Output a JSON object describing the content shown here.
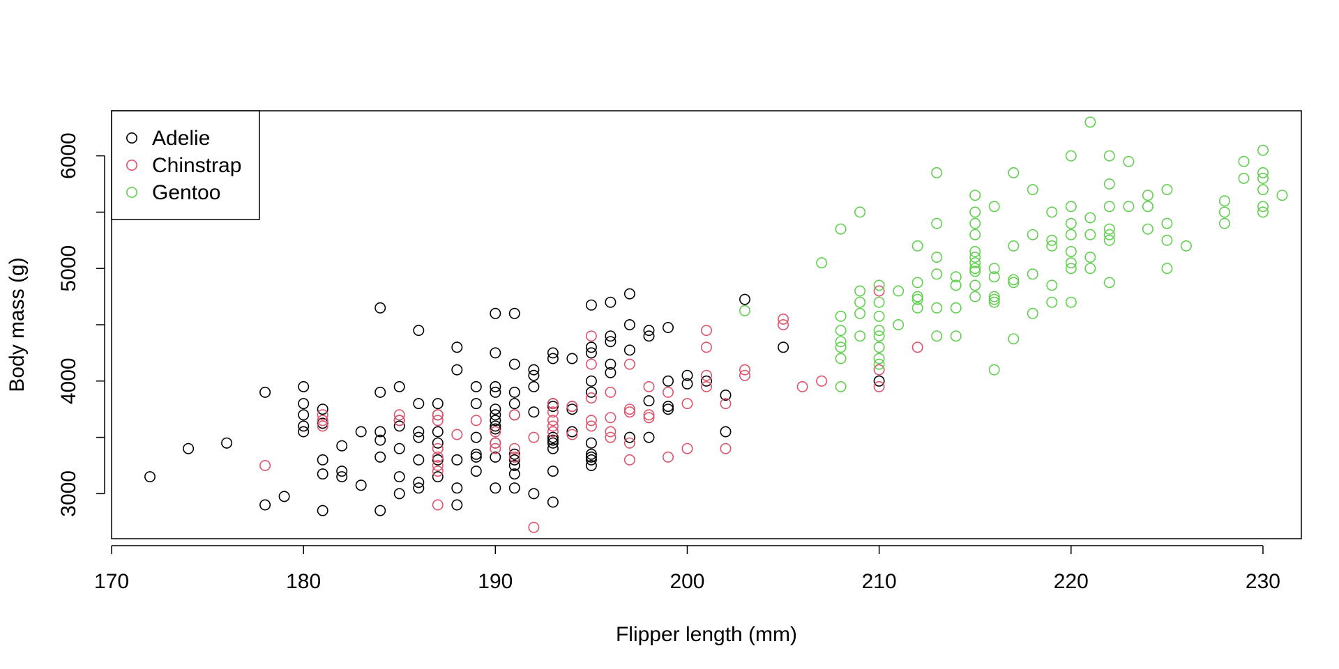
{
  "chart_data": {
    "type": "scatter",
    "title": "",
    "xlabel": "Flipper length (mm)",
    "ylabel": "Body mass (g)",
    "xlim": [
      170,
      232
    ],
    "ylim": [
      2600,
      6400
    ],
    "xticks": [
      170,
      180,
      190,
      200,
      210,
      220,
      230
    ],
    "yticks": [
      3000,
      4000,
      5000,
      6000
    ],
    "yminor": [
      3500,
      4500,
      5500
    ],
    "grid": false,
    "legend": {
      "position": "top-left",
      "marker": "open-circle"
    },
    "series": [
      {
        "name": "Adelie",
        "color": "#000000",
        "points": [
          [
            172,
            3150
          ],
          [
            174,
            3400
          ],
          [
            176,
            3450
          ],
          [
            178,
            3900
          ],
          [
            178,
            2900
          ],
          [
            179,
            2975
          ],
          [
            180,
            3950
          ],
          [
            180,
            3800
          ],
          [
            180,
            3700
          ],
          [
            180,
            3600
          ],
          [
            180,
            3550
          ],
          [
            181,
            3750
          ],
          [
            181,
            3625
          ],
          [
            181,
            3300
          ],
          [
            181,
            3175
          ],
          [
            181,
            2850
          ],
          [
            182,
            3425
          ],
          [
            182,
            3200
          ],
          [
            182,
            3150
          ],
          [
            183,
            3550
          ],
          [
            183,
            3075
          ],
          [
            184,
            4650
          ],
          [
            184,
            3900
          ],
          [
            184,
            3550
          ],
          [
            184,
            3475
          ],
          [
            184,
            3325
          ],
          [
            184,
            2850
          ],
          [
            185,
            3950
          ],
          [
            185,
            3650
          ],
          [
            185,
            3600
          ],
          [
            185,
            3400
          ],
          [
            185,
            3150
          ],
          [
            185,
            3000
          ],
          [
            186,
            4450
          ],
          [
            186,
            3800
          ],
          [
            186,
            3550
          ],
          [
            186,
            3500
          ],
          [
            186,
            3300
          ],
          [
            186,
            3100
          ],
          [
            186,
            3050
          ],
          [
            187,
            3800
          ],
          [
            187,
            3700
          ],
          [
            187,
            3550
          ],
          [
            187,
            3450
          ],
          [
            187,
            3300
          ],
          [
            187,
            3150
          ],
          [
            188,
            4300
          ],
          [
            188,
            4100
          ],
          [
            188,
            3300
          ],
          [
            188,
            3050
          ],
          [
            188,
            2900
          ],
          [
            189,
            3950
          ],
          [
            189,
            3800
          ],
          [
            189,
            3500
          ],
          [
            189,
            3350
          ],
          [
            189,
            3325
          ],
          [
            189,
            3200
          ],
          [
            190,
            4600
          ],
          [
            190,
            4250
          ],
          [
            190,
            3950
          ],
          [
            190,
            3900
          ],
          [
            190,
            3750
          ],
          [
            190,
            3700
          ],
          [
            190,
            3650
          ],
          [
            190,
            3600
          ],
          [
            190,
            3575
          ],
          [
            190,
            3450
          ],
          [
            190,
            3325
          ],
          [
            190,
            3050
          ],
          [
            191,
            4600
          ],
          [
            191,
            4150
          ],
          [
            191,
            3900
          ],
          [
            191,
            3800
          ],
          [
            191,
            3700
          ],
          [
            191,
            3350
          ],
          [
            191,
            3300
          ],
          [
            191,
            3250
          ],
          [
            191,
            3175
          ],
          [
            191,
            3050
          ],
          [
            192,
            4100
          ],
          [
            192,
            4050
          ],
          [
            192,
            3950
          ],
          [
            192,
            3725
          ],
          [
            192,
            3000
          ],
          [
            193,
            4250
          ],
          [
            193,
            4200
          ],
          [
            193,
            3800
          ],
          [
            193,
            3775
          ],
          [
            193,
            3500
          ],
          [
            193,
            3475
          ],
          [
            193,
            3450
          ],
          [
            193,
            3400
          ],
          [
            193,
            3200
          ],
          [
            193,
            2925
          ],
          [
            194,
            4200
          ],
          [
            194,
            3775
          ],
          [
            194,
            3750
          ],
          [
            194,
            3550
          ],
          [
            195,
            4675
          ],
          [
            195,
            4300
          ],
          [
            195,
            4250
          ],
          [
            195,
            4000
          ],
          [
            195,
            3900
          ],
          [
            195,
            3450
          ],
          [
            195,
            3350
          ],
          [
            195,
            3325
          ],
          [
            195,
            3300
          ],
          [
            195,
            3250
          ],
          [
            196,
            4700
          ],
          [
            196,
            4400
          ],
          [
            196,
            4350
          ],
          [
            196,
            4150
          ],
          [
            196,
            4075
          ],
          [
            197,
            4775
          ],
          [
            197,
            4500
          ],
          [
            197,
            4275
          ],
          [
            197,
            3500
          ],
          [
            198,
            4450
          ],
          [
            198,
            4400
          ],
          [
            198,
            3825
          ],
          [
            198,
            3500
          ],
          [
            199,
            4475
          ],
          [
            199,
            4000
          ],
          [
            199,
            3775
          ],
          [
            199,
            3750
          ],
          [
            200,
            4050
          ],
          [
            200,
            3975
          ],
          [
            201,
            4000
          ],
          [
            202,
            3875
          ],
          [
            202,
            3550
          ],
          [
            203,
            4725
          ],
          [
            205,
            4300
          ],
          [
            210,
            4000
          ]
        ]
      },
      {
        "name": "Chinstrap",
        "color": "#DF536B",
        "points": [
          [
            178,
            3250
          ],
          [
            181,
            3700
          ],
          [
            181,
            3650
          ],
          [
            181,
            3600
          ],
          [
            185,
            3700
          ],
          [
            185,
            3650
          ],
          [
            187,
            3700
          ],
          [
            187,
            3650
          ],
          [
            187,
            3400
          ],
          [
            187,
            3325
          ],
          [
            187,
            3250
          ],
          [
            187,
            3200
          ],
          [
            187,
            2900
          ],
          [
            188,
            3525
          ],
          [
            189,
            3650
          ],
          [
            190,
            3550
          ],
          [
            190,
            3450
          ],
          [
            190,
            3400
          ],
          [
            191,
            3700
          ],
          [
            191,
            3400
          ],
          [
            191,
            3325
          ],
          [
            192,
            3500
          ],
          [
            192,
            2700
          ],
          [
            193,
            3800
          ],
          [
            193,
            3725
          ],
          [
            193,
            3650
          ],
          [
            193,
            3600
          ],
          [
            193,
            3550
          ],
          [
            194,
            3775
          ],
          [
            194,
            3525
          ],
          [
            195,
            4400
          ],
          [
            195,
            4150
          ],
          [
            195,
            3850
          ],
          [
            195,
            3650
          ],
          [
            195,
            3600
          ],
          [
            196,
            3900
          ],
          [
            196,
            3675
          ],
          [
            196,
            3550
          ],
          [
            196,
            3500
          ],
          [
            197,
            4150
          ],
          [
            197,
            3750
          ],
          [
            197,
            3725
          ],
          [
            197,
            3450
          ],
          [
            197,
            3300
          ],
          [
            198,
            3950
          ],
          [
            198,
            3700
          ],
          [
            198,
            3675
          ],
          [
            199,
            3900
          ],
          [
            199,
            3325
          ],
          [
            200,
            3800
          ],
          [
            200,
            3400
          ],
          [
            201,
            4450
          ],
          [
            201,
            4300
          ],
          [
            201,
            4050
          ],
          [
            201,
            3950
          ],
          [
            202,
            3800
          ],
          [
            202,
            3400
          ],
          [
            203,
            4100
          ],
          [
            203,
            4050
          ],
          [
            205,
            4550
          ],
          [
            205,
            4500
          ],
          [
            206,
            3950
          ],
          [
            207,
            4000
          ],
          [
            210,
            4800
          ],
          [
            210,
            4100
          ],
          [
            210,
            3950
          ],
          [
            212,
            4300
          ]
        ]
      },
      {
        "name": "Gentoo",
        "color": "#61D04F",
        "points": [
          [
            203,
            4625
          ],
          [
            207,
            5050
          ],
          [
            208,
            5350
          ],
          [
            208,
            4575
          ],
          [
            208,
            4450
          ],
          [
            208,
            4350
          ],
          [
            208,
            4300
          ],
          [
            208,
            4200
          ],
          [
            208,
            3950
          ],
          [
            209,
            5500
          ],
          [
            209,
            4800
          ],
          [
            209,
            4700
          ],
          [
            209,
            4600
          ],
          [
            209,
            4400
          ],
          [
            210,
            4850
          ],
          [
            210,
            4700
          ],
          [
            210,
            4575
          ],
          [
            210,
            4450
          ],
          [
            210,
            4400
          ],
          [
            210,
            4300
          ],
          [
            210,
            4200
          ],
          [
            210,
            4150
          ],
          [
            211,
            4800
          ],
          [
            211,
            4500
          ],
          [
            212,
            5200
          ],
          [
            212,
            4875
          ],
          [
            212,
            4750
          ],
          [
            212,
            4725
          ],
          [
            212,
            4650
          ],
          [
            213,
            5850
          ],
          [
            213,
            5400
          ],
          [
            213,
            5100
          ],
          [
            213,
            4950
          ],
          [
            213,
            4650
          ],
          [
            213,
            4400
          ],
          [
            214,
            4925
          ],
          [
            214,
            4850
          ],
          [
            214,
            4650
          ],
          [
            214,
            4400
          ],
          [
            215,
            5650
          ],
          [
            215,
            5500
          ],
          [
            215,
            5400
          ],
          [
            215,
            5300
          ],
          [
            215,
            5150
          ],
          [
            215,
            5100
          ],
          [
            215,
            5050
          ],
          [
            215,
            5000
          ],
          [
            215,
            4975
          ],
          [
            215,
            4850
          ],
          [
            215,
            4750
          ],
          [
            216,
            5550
          ],
          [
            216,
            5000
          ],
          [
            216,
            4925
          ],
          [
            216,
            4750
          ],
          [
            216,
            4725
          ],
          [
            216,
            4700
          ],
          [
            216,
            4100
          ],
          [
            217,
            5850
          ],
          [
            217,
            5200
          ],
          [
            217,
            4900
          ],
          [
            217,
            4875
          ],
          [
            217,
            4375
          ],
          [
            218,
            5700
          ],
          [
            218,
            5300
          ],
          [
            218,
            4950
          ],
          [
            218,
            4600
          ],
          [
            219,
            5500
          ],
          [
            219,
            5250
          ],
          [
            219,
            5200
          ],
          [
            219,
            4850
          ],
          [
            219,
            4700
          ],
          [
            220,
            6000
          ],
          [
            220,
            5550
          ],
          [
            220,
            5400
          ],
          [
            220,
            5300
          ],
          [
            220,
            5150
          ],
          [
            220,
            5050
          ],
          [
            220,
            5000
          ],
          [
            220,
            4700
          ],
          [
            221,
            6300
          ],
          [
            221,
            5450
          ],
          [
            221,
            5300
          ],
          [
            221,
            5100
          ],
          [
            221,
            5000
          ],
          [
            222,
            6000
          ],
          [
            222,
            5750
          ],
          [
            222,
            5550
          ],
          [
            222,
            5350
          ],
          [
            222,
            5300
          ],
          [
            222,
            5250
          ],
          [
            222,
            4875
          ],
          [
            223,
            5950
          ],
          [
            223,
            5550
          ],
          [
            224,
            5650
          ],
          [
            224,
            5550
          ],
          [
            224,
            5350
          ],
          [
            225,
            5700
          ],
          [
            225,
            5400
          ],
          [
            225,
            5250
          ],
          [
            225,
            5000
          ],
          [
            226,
            5200
          ],
          [
            228,
            5600
          ],
          [
            228,
            5500
          ],
          [
            228,
            5400
          ],
          [
            229,
            5950
          ],
          [
            229,
            5800
          ],
          [
            230,
            6050
          ],
          [
            230,
            5850
          ],
          [
            230,
            5800
          ],
          [
            230,
            5700
          ],
          [
            230,
            5550
          ],
          [
            230,
            5500
          ],
          [
            231,
            5650
          ]
        ]
      }
    ]
  }
}
